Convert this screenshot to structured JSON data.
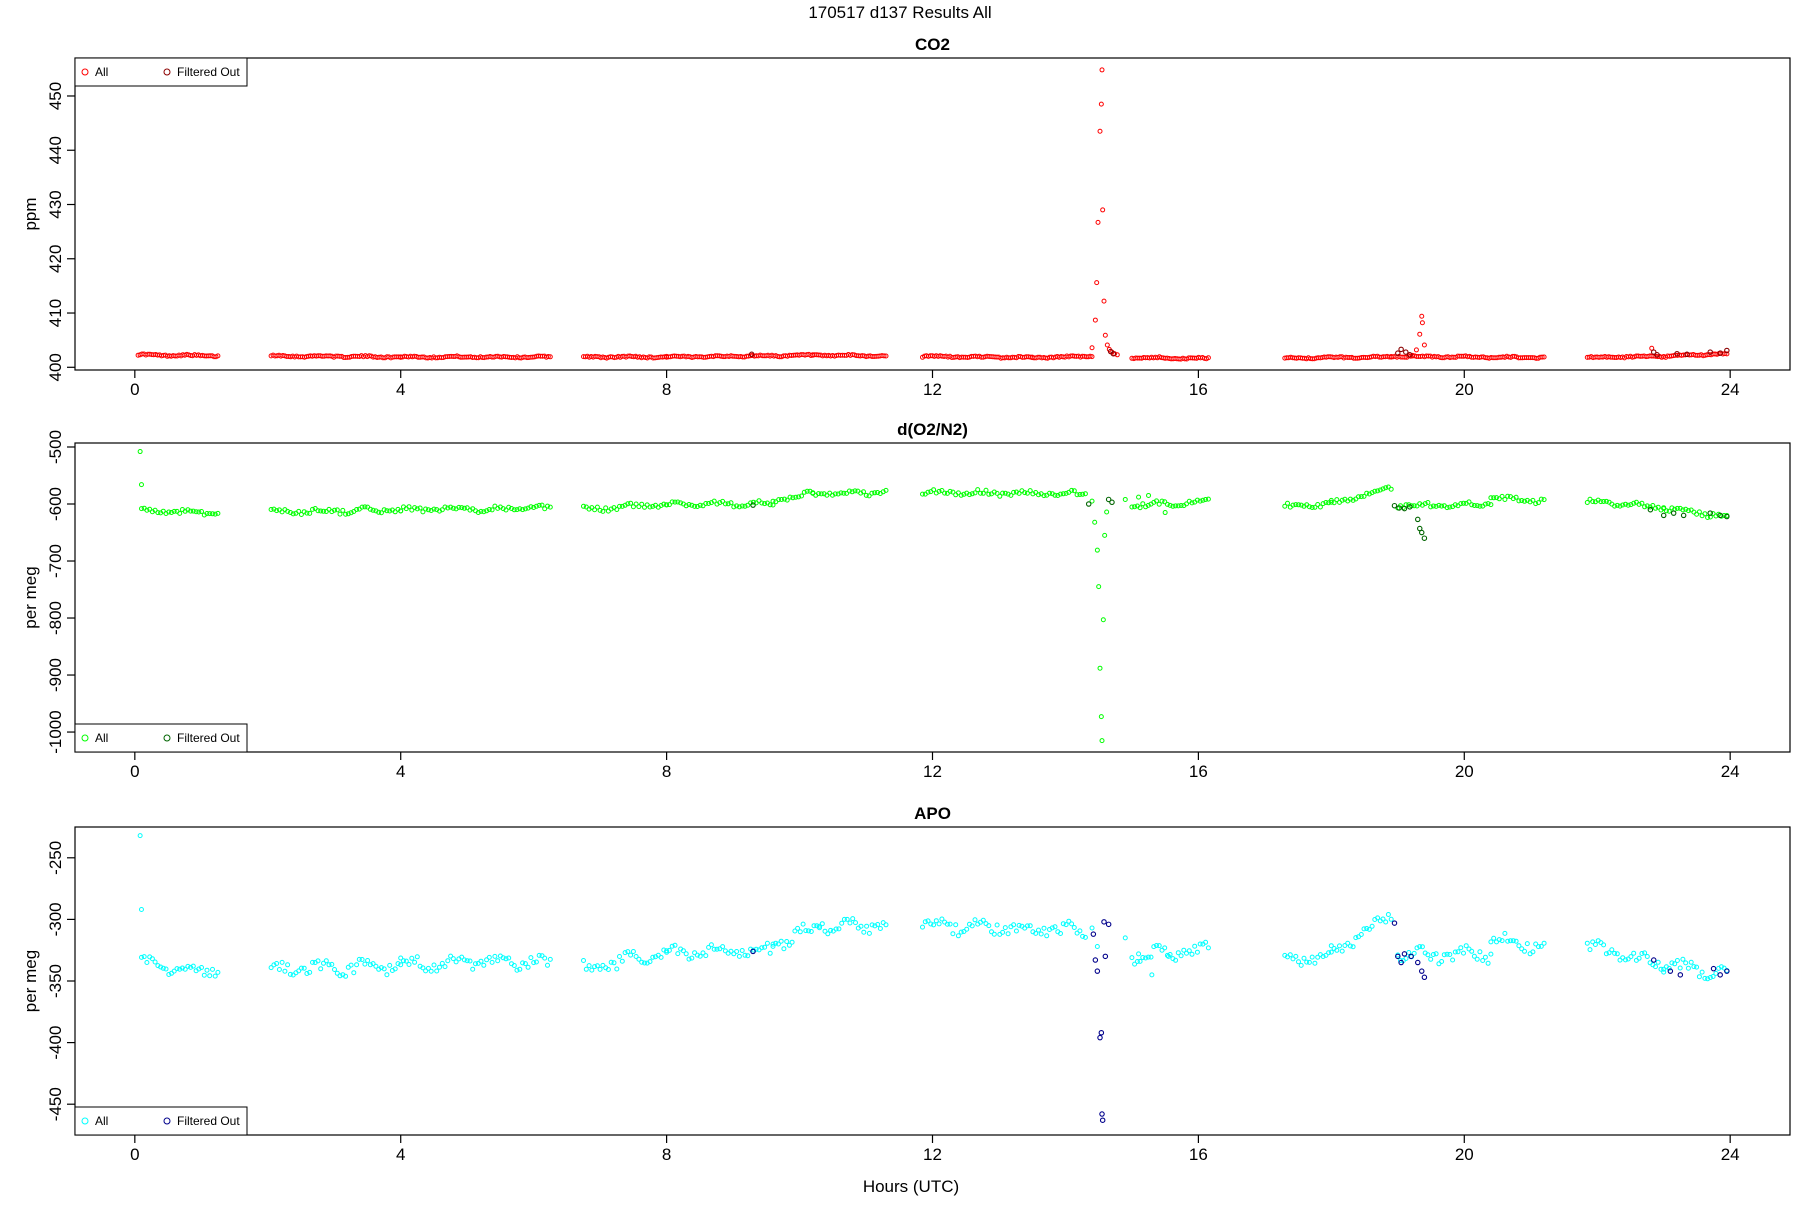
{
  "main_title": "170517   d137   Results All",
  "x_axis_label": "Hours (UTC)",
  "x_ticks": [
    "0",
    "4",
    "8",
    "12",
    "16",
    "20",
    "24"
  ],
  "colors": {
    "co2_all": "#ff0000",
    "co2_filtered": "#8b0000",
    "o2_all": "#00ff00",
    "o2_filtered": "#006400",
    "apo_all": "#00ffff",
    "apo_filtered": "#00008b"
  },
  "chart_data": [
    {
      "type": "scatter",
      "title": "CO2",
      "ylabel": "ppm",
      "xlim": [
        -0.9,
        24.9
      ],
      "ylim": [
        399.5,
        457
      ],
      "yticks": [
        400,
        410,
        420,
        430,
        440,
        450
      ],
      "legend_position": "top-left",
      "legend": [
        "All",
        "Filtered Out"
      ],
      "baseline_segments": [
        {
          "x": [
            0.05,
            1.25
          ],
          "y": [
            402.3,
            402.1
          ]
        },
        {
          "x": [
            2.05,
            4.0
          ],
          "y": [
            402.1,
            401.9
          ]
        },
        {
          "x": [
            4.0,
            6.25
          ],
          "y": [
            401.9,
            401.9
          ]
        },
        {
          "x": [
            6.75,
            8.0
          ],
          "y": [
            401.9,
            401.9
          ]
        },
        {
          "x": [
            8.0,
            10.2
          ],
          "y": [
            401.9,
            402.2
          ]
        },
        {
          "x": [
            10.2,
            11.3
          ],
          "y": [
            402.2,
            402.1
          ]
        },
        {
          "x": [
            11.85,
            13.5
          ],
          "y": [
            402.0,
            401.8
          ]
        },
        {
          "x": [
            13.5,
            14.4
          ],
          "y": [
            401.8,
            402.0
          ]
        },
        {
          "x": [
            15.0,
            16.15
          ],
          "y": [
            401.8,
            401.6
          ]
        },
        {
          "x": [
            17.3,
            18.9
          ],
          "y": [
            401.7,
            401.9
          ]
        },
        {
          "x": [
            18.9,
            21.2
          ],
          "y": [
            402.0,
            401.8
          ]
        },
        {
          "x": [
            21.85,
            23.0
          ],
          "y": [
            401.8,
            402.0
          ]
        },
        {
          "x": [
            23.0,
            23.95
          ],
          "y": [
            402.0,
            402.5
          ]
        }
      ],
      "all_points": [
        {
          "x": 14.4,
          "y": 403.6
        },
        {
          "x": 14.45,
          "y": 408.7
        },
        {
          "x": 14.47,
          "y": 415.6
        },
        {
          "x": 14.49,
          "y": 426.7
        },
        {
          "x": 14.52,
          "y": 443.5
        },
        {
          "x": 14.54,
          "y": 448.5
        },
        {
          "x": 14.55,
          "y": 454.8
        },
        {
          "x": 14.56,
          "y": 429.0
        },
        {
          "x": 14.58,
          "y": 412.2
        },
        {
          "x": 14.6,
          "y": 405.9
        },
        {
          "x": 14.63,
          "y": 404.1
        },
        {
          "x": 14.66,
          "y": 403.3
        },
        {
          "x": 14.7,
          "y": 402.8
        },
        {
          "x": 14.74,
          "y": 402.5
        },
        {
          "x": 14.78,
          "y": 402.3
        },
        {
          "x": 19.22,
          "y": 402.2
        },
        {
          "x": 19.28,
          "y": 403.2
        },
        {
          "x": 19.33,
          "y": 406.1
        },
        {
          "x": 19.36,
          "y": 409.4
        },
        {
          "x": 19.37,
          "y": 408.2
        },
        {
          "x": 19.4,
          "y": 404.1
        },
        {
          "x": 22.82,
          "y": 403.5
        }
      ],
      "filtered_points": [
        {
          "x": 9.28,
          "y": 402.4
        },
        {
          "x": 14.68,
          "y": 402.9
        },
        {
          "x": 14.72,
          "y": 402.5
        },
        {
          "x": 19.0,
          "y": 402.6
        },
        {
          "x": 19.05,
          "y": 403.3
        },
        {
          "x": 19.12,
          "y": 402.8
        },
        {
          "x": 19.18,
          "y": 402.3
        },
        {
          "x": 22.85,
          "y": 402.8
        },
        {
          "x": 22.9,
          "y": 402.3
        },
        {
          "x": 23.2,
          "y": 402.5
        },
        {
          "x": 23.35,
          "y": 402.4
        },
        {
          "x": 23.7,
          "y": 402.8
        },
        {
          "x": 23.85,
          "y": 402.6
        },
        {
          "x": 23.95,
          "y": 403.1
        }
      ]
    },
    {
      "type": "scatter",
      "title": "d(O2/N2)",
      "ylabel": "per meg",
      "xlim": [
        -0.9,
        24.9
      ],
      "ylim": [
        -1035,
        -493
      ],
      "yticks": [
        -500,
        -600,
        -700,
        -800,
        -900,
        -1000
      ],
      "legend_position": "bottom-left",
      "legend": [
        "All",
        "Filtered Out"
      ],
      "baseline_segments": [
        {
          "x": [
            0.1,
            1.25
          ],
          "y": [
            -612,
            -615
          ]
        },
        {
          "x": [
            2.05,
            4.0
          ],
          "y": [
            -614,
            -610
          ]
        },
        {
          "x": [
            4.0,
            6.25
          ],
          "y": [
            -610,
            -608
          ]
        },
        {
          "x": [
            6.75,
            8.0
          ],
          "y": [
            -610,
            -600
          ]
        },
        {
          "x": [
            8.0,
            9.6
          ],
          "y": [
            -600,
            -600
          ]
        },
        {
          "x": [
            9.6,
            10.2
          ],
          "y": [
            -595,
            -582
          ]
        },
        {
          "x": [
            10.2,
            11.3
          ],
          "y": [
            -582,
            -580
          ]
        },
        {
          "x": [
            11.85,
            14.3
          ],
          "y": [
            -580,
            -582
          ]
        },
        {
          "x": [
            15.0,
            16.15
          ],
          "y": [
            -603,
            -595
          ]
        },
        {
          "x": [
            17.3,
            18.0
          ],
          "y": [
            -605,
            -600
          ]
        },
        {
          "x": [
            18.0,
            18.9
          ],
          "y": [
            -600,
            -570
          ]
        },
        {
          "x": [
            19.0,
            20.4
          ],
          "y": [
            -603,
            -600
          ]
        },
        {
          "x": [
            20.4,
            21.2
          ],
          "y": [
            -590,
            -595
          ]
        },
        {
          "x": [
            21.85,
            23.0
          ],
          "y": [
            -595,
            -607
          ]
        },
        {
          "x": [
            23.0,
            23.95
          ],
          "y": [
            -607,
            -622
          ]
        }
      ],
      "all_points": [
        {
          "x": 0.08,
          "y": -508
        },
        {
          "x": 0.1,
          "y": -566
        },
        {
          "x": 14.4,
          "y": -595
        },
        {
          "x": 14.44,
          "y": -632
        },
        {
          "x": 14.48,
          "y": -681
        },
        {
          "x": 14.5,
          "y": -745
        },
        {
          "x": 14.52,
          "y": -888
        },
        {
          "x": 14.54,
          "y": -973
        },
        {
          "x": 14.55,
          "y": -1015
        },
        {
          "x": 14.57,
          "y": -803
        },
        {
          "x": 14.59,
          "y": -655
        },
        {
          "x": 14.62,
          "y": -614
        },
        {
          "x": 14.9,
          "y": -592
        },
        {
          "x": 15.1,
          "y": -588
        },
        {
          "x": 15.25,
          "y": -585
        },
        {
          "x": 15.5,
          "y": -615
        }
      ],
      "filtered_points": [
        {
          "x": 9.3,
          "y": -602
        },
        {
          "x": 14.35,
          "y": -600
        },
        {
          "x": 14.65,
          "y": -592
        },
        {
          "x": 14.7,
          "y": -597
        },
        {
          "x": 18.95,
          "y": -603
        },
        {
          "x": 19.02,
          "y": -607
        },
        {
          "x": 19.1,
          "y": -608
        },
        {
          "x": 19.18,
          "y": -605
        },
        {
          "x": 19.3,
          "y": -627
        },
        {
          "x": 19.33,
          "y": -643
        },
        {
          "x": 19.36,
          "y": -650
        },
        {
          "x": 19.4,
          "y": -660
        },
        {
          "x": 22.8,
          "y": -610
        },
        {
          "x": 23.0,
          "y": -620
        },
        {
          "x": 23.15,
          "y": -616
        },
        {
          "x": 23.3,
          "y": -620
        },
        {
          "x": 23.7,
          "y": -616
        },
        {
          "x": 23.85,
          "y": -620
        },
        {
          "x": 23.95,
          "y": -622
        }
      ]
    },
    {
      "type": "scatter",
      "title": "APO",
      "ylabel": "per meg",
      "xlim": [
        -0.9,
        24.9
      ],
      "ylim": [
        -475,
        -225
      ],
      "yticks": [
        -250,
        -300,
        -350,
        -400,
        -450
      ],
      "legend_position": "bottom-left",
      "legend": [
        "All",
        "Filtered Out"
      ],
      "baseline_segments": [
        {
          "x": [
            0.1,
            1.25
          ],
          "y": [
            -337,
            -342
          ]
        },
        {
          "x": [
            2.05,
            4.0
          ],
          "y": [
            -340,
            -338
          ]
        },
        {
          "x": [
            4.0,
            6.25
          ],
          "y": [
            -336,
            -335
          ]
        },
        {
          "x": [
            6.75,
            8.0
          ],
          "y": [
            -340,
            -328
          ]
        },
        {
          "x": [
            8.0,
            9.6
          ],
          "y": [
            -328,
            -325
          ]
        },
        {
          "x": [
            9.6,
            10.3
          ],
          "y": [
            -320,
            -305
          ]
        },
        {
          "x": [
            10.3,
            11.3
          ],
          "y": [
            -305,
            -305
          ]
        },
        {
          "x": [
            11.85,
            14.3
          ],
          "y": [
            -305,
            -309
          ]
        },
        {
          "x": [
            15.0,
            16.15
          ],
          "y": [
            -330,
            -325
          ]
        },
        {
          "x": [
            17.3,
            18.0
          ],
          "y": [
            -335,
            -328
          ]
        },
        {
          "x": [
            18.0,
            18.9
          ],
          "y": [
            -328,
            -297
          ]
        },
        {
          "x": [
            19.0,
            20.4
          ],
          "y": [
            -330,
            -328
          ]
        },
        {
          "x": [
            20.4,
            21.2
          ],
          "y": [
            -316,
            -322
          ]
        },
        {
          "x": [
            21.85,
            23.0
          ],
          "y": [
            -322,
            -337
          ]
        },
        {
          "x": [
            23.0,
            23.95
          ],
          "y": [
            -337,
            -345
          ]
        }
      ],
      "all_points": [
        {
          "x": 0.08,
          "y": -232
        },
        {
          "x": 0.1,
          "y": -292
        },
        {
          "x": 14.4,
          "y": -307
        },
        {
          "x": 14.48,
          "y": -322
        },
        {
          "x": 14.9,
          "y": -315
        },
        {
          "x": 15.1,
          "y": -328
        },
        {
          "x": 15.3,
          "y": -345
        },
        {
          "x": 15.55,
          "y": -330
        }
      ],
      "filtered_points": [
        {
          "x": 9.3,
          "y": -326
        },
        {
          "x": 14.42,
          "y": -312
        },
        {
          "x": 14.45,
          "y": -333
        },
        {
          "x": 14.48,
          "y": -342
        },
        {
          "x": 14.52,
          "y": -396
        },
        {
          "x": 14.54,
          "y": -392
        },
        {
          "x": 14.55,
          "y": -458
        },
        {
          "x": 14.56,
          "y": -463
        },
        {
          "x": 14.58,
          "y": -302
        },
        {
          "x": 14.6,
          "y": -330
        },
        {
          "x": 14.65,
          "y": -304
        },
        {
          "x": 18.95,
          "y": -303
        },
        {
          "x": 19.0,
          "y": -330
        },
        {
          "x": 19.05,
          "y": -335
        },
        {
          "x": 19.1,
          "y": -328
        },
        {
          "x": 19.2,
          "y": -330
        },
        {
          "x": 19.3,
          "y": -335
        },
        {
          "x": 19.36,
          "y": -342
        },
        {
          "x": 19.4,
          "y": -347
        },
        {
          "x": 22.85,
          "y": -333
        },
        {
          "x": 23.1,
          "y": -342
        },
        {
          "x": 23.25,
          "y": -345
        },
        {
          "x": 23.75,
          "y": -340
        },
        {
          "x": 23.85,
          "y": -345
        },
        {
          "x": 23.95,
          "y": -342
        }
      ]
    }
  ]
}
